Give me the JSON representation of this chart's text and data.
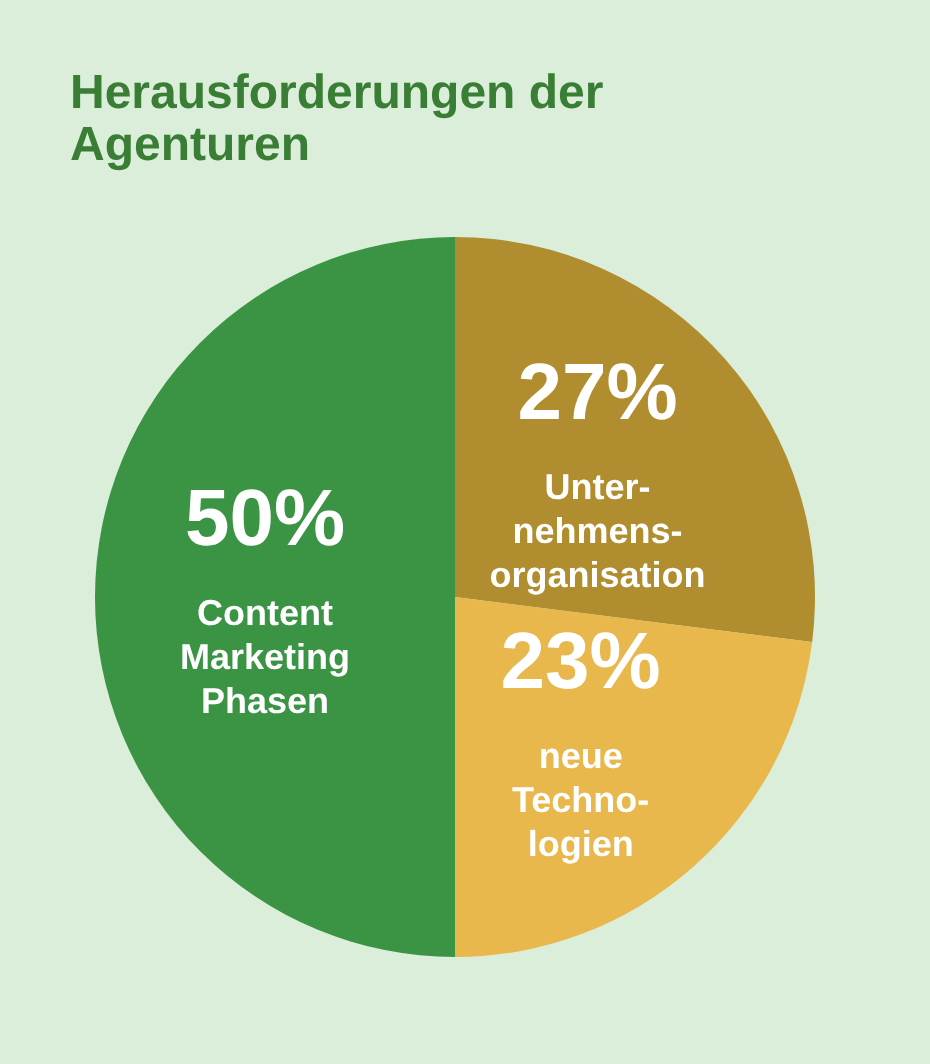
{
  "chart_data": {
    "type": "pie",
    "title": "Herausforderungen der\nAgenturen",
    "categories": [
      "Unter-\nnehmens-\norganisation",
      "neue\nTechno-\nlogien",
      "Content\nMarketing\nPhasen"
    ],
    "values": [
      27,
      23,
      50
    ],
    "value_labels": [
      "27%",
      "23%",
      "50%"
    ],
    "colors": [
      "#b08d2e",
      "#e8b84c",
      "#3a9444"
    ],
    "legend": false
  }
}
